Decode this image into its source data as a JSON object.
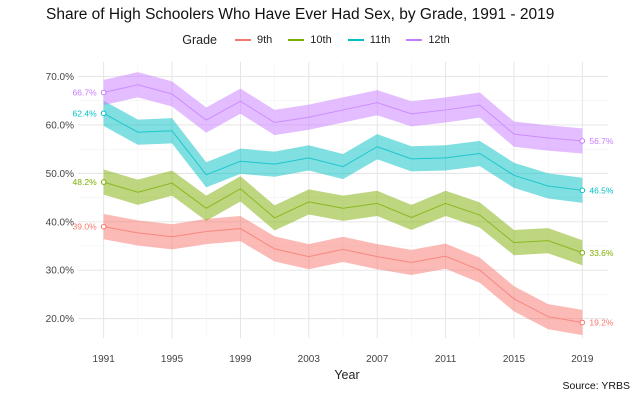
{
  "chart_data": {
    "type": "line",
    "title": "Share of High Schoolers Who Have Ever Had Sex, by Grade, 1991 - 2019",
    "xlabel": "Year",
    "ylabel": "",
    "x": [
      1991,
      1993,
      1995,
      1997,
      1999,
      2001,
      2003,
      2005,
      2007,
      2009,
      2011,
      2013,
      2015,
      2017,
      2019
    ],
    "xlim": [
      1989.5,
      2020.5
    ],
    "ylim": [
      16,
      73
    ],
    "x_ticks": [
      1991,
      1995,
      1999,
      2003,
      2007,
      2011,
      2015,
      2019
    ],
    "y_ticks": [
      20,
      30,
      40,
      50,
      60,
      70
    ],
    "y_tick_labels": [
      "20.0%",
      "30.0%",
      "40.0%",
      "50.0%",
      "60.0%",
      "70.0%"
    ],
    "grid": true,
    "legend": {
      "title": "Grade",
      "placement": "top"
    },
    "ribbon_halfwidth": 2.6,
    "series": [
      {
        "name": "9th",
        "color": "#F8766D",
        "values": [
          39.0,
          37.7,
          36.9,
          38.0,
          38.6,
          34.4,
          32.8,
          34.3,
          32.8,
          31.6,
          32.9,
          30.0,
          24.1,
          20.4,
          19.2
        ],
        "start_label": "39.0%",
        "end_label": "19.2%"
      },
      {
        "name": "10th",
        "color": "#7CAE00",
        "values": [
          48.2,
          46.1,
          48.0,
          42.8,
          46.8,
          40.8,
          44.1,
          42.8,
          43.8,
          40.9,
          43.8,
          41.4,
          35.7,
          36.1,
          33.6
        ],
        "start_label": "48.2%",
        "end_label": "33.6%"
      },
      {
        "name": "11th",
        "color": "#00BFC4",
        "values": [
          62.4,
          58.5,
          58.8,
          49.7,
          52.5,
          51.9,
          53.2,
          51.4,
          55.5,
          53.0,
          53.2,
          54.1,
          49.6,
          47.4,
          46.5
        ],
        "start_label": "62.4%",
        "end_label": "46.5%"
      },
      {
        "name": "12th",
        "color": "#C77CFF",
        "values": [
          66.7,
          68.3,
          66.4,
          61.0,
          64.9,
          60.5,
          61.6,
          63.1,
          64.6,
          62.3,
          63.1,
          64.1,
          58.1,
          57.3,
          56.7
        ],
        "start_label": "66.7%",
        "end_label": "56.7%"
      }
    ]
  },
  "source": "Source: YRBS"
}
